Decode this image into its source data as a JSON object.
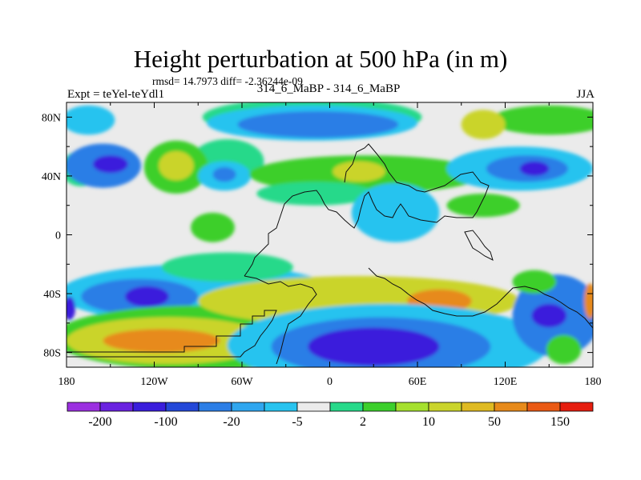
{
  "chart_data": {
    "type": "heatmap",
    "title": "Height perturbation at 500 hPa (in m)",
    "stats_text": "rmsd= 14.7973 diff= -2.36244e-09",
    "left_label": "Expt = teYel-teYdl1",
    "subtitle": "314_6_MaBP - 314_6_MaBP",
    "right_label": "JJA",
    "x_ticks": [
      "180",
      "120W",
      "60W",
      "0",
      "60E",
      "120E",
      "180"
    ],
    "x_tick_values": [
      -180,
      -120,
      -60,
      0,
      60,
      120,
      180
    ],
    "y_ticks": [
      "80N",
      "40N",
      "0",
      "40S",
      "80S"
    ],
    "y_tick_values": [
      80,
      40,
      0,
      -40,
      -80
    ],
    "xlim": [
      -180,
      180
    ],
    "ylim": [
      -90,
      90
    ],
    "colorbar": {
      "colors": [
        "#9b30e0",
        "#6a22e0",
        "#3a1edc",
        "#2448d8",
        "#2c7ee6",
        "#2fa6ef",
        "#28c3ef",
        "#ebebeb",
        "#27d98a",
        "#3ccf2c",
        "#a5e02e",
        "#cad42c",
        "#dfba22",
        "#e78a1a",
        "#ea5a14",
        "#e61e0f"
      ],
      "labels": [
        "-200",
        "-100",
        "-20",
        "-5",
        "2",
        "10",
        "50",
        "150"
      ]
    },
    "regions": [
      {
        "level": -5,
        "cx": -165,
        "cy": 78,
        "rx": 18,
        "ry": 10
      },
      {
        "level": 2,
        "cx": -170,
        "cy": 45,
        "rx": 14,
        "ry": 12
      },
      {
        "level": -20,
        "cx": -155,
        "cy": 47,
        "rx": 26,
        "ry": 15
      },
      {
        "level": -100,
        "cx": -150,
        "cy": 48,
        "rx": 12,
        "ry": 6
      },
      {
        "level": 2,
        "cx": -70,
        "cy": 50,
        "rx": 25,
        "ry": 15
      },
      {
        "level": 10,
        "cx": -105,
        "cy": 46,
        "rx": 22,
        "ry": 18
      },
      {
        "level": 50,
        "cx": -105,
        "cy": 47,
        "rx": 12,
        "ry": 10
      },
      {
        "level": 2,
        "cx": -12,
        "cy": 80,
        "rx": 75,
        "ry": 13
      },
      {
        "level": -5,
        "cx": -12,
        "cy": 76,
        "rx": 72,
        "ry": 12
      },
      {
        "level": -20,
        "cx": -8,
        "cy": 75,
        "rx": 55,
        "ry": 9
      },
      {
        "level": -5,
        "cx": -72,
        "cy": 40,
        "rx": 18,
        "ry": 10
      },
      {
        "level": -20,
        "cx": -72,
        "cy": 41,
        "rx": 8,
        "ry": 5
      },
      {
        "level": 10,
        "cx": 25,
        "cy": 41,
        "rx": 80,
        "ry": 13
      },
      {
        "level": 50,
        "cx": 20,
        "cy": 43,
        "rx": 18,
        "ry": 7
      },
      {
        "level": 2,
        "cx": -10,
        "cy": 28,
        "rx": 40,
        "ry": 8
      },
      {
        "level": 10,
        "cx": 150,
        "cy": 78,
        "rx": 40,
        "ry": 10
      },
      {
        "level": 50,
        "cx": 105,
        "cy": 75,
        "rx": 15,
        "ry": 10
      },
      {
        "level": -5,
        "cx": 130,
        "cy": 45,
        "rx": 50,
        "ry": 15
      },
      {
        "level": -20,
        "cx": 135,
        "cy": 45,
        "rx": 28,
        "ry": 9
      },
      {
        "level": -100,
        "cx": 140,
        "cy": 45,
        "rx": 10,
        "ry": 5
      },
      {
        "level": 10,
        "cx": 105,
        "cy": 20,
        "rx": 25,
        "ry": 8
      },
      {
        "level": -5,
        "cx": 45,
        "cy": 15,
        "rx": 30,
        "ry": 20
      },
      {
        "level": 10,
        "cx": -80,
        "cy": 5,
        "rx": 15,
        "ry": 10
      },
      {
        "level": -5,
        "cx": -90,
        "cy": -40,
        "rx": 95,
        "ry": 20
      },
      {
        "level": -20,
        "cx": -130,
        "cy": -42,
        "rx": 40,
        "ry": 12
      },
      {
        "level": -100,
        "cx": -125,
        "cy": -42,
        "rx": 15,
        "ry": 7
      },
      {
        "level": 2,
        "cx": -70,
        "cy": -22,
        "rx": 45,
        "ry": 10
      },
      {
        "level": 10,
        "cx": -90,
        "cy": -70,
        "rx": 100,
        "ry": 22
      },
      {
        "level": 50,
        "cx": -110,
        "cy": -72,
        "rx": 70,
        "ry": 16
      },
      {
        "level": 150,
        "cx": -115,
        "cy": -72,
        "rx": 40,
        "ry": 8
      },
      {
        "level": 50,
        "cx": 20,
        "cy": -45,
        "rx": 110,
        "ry": 17
      },
      {
        "level": 150,
        "cx": 75,
        "cy": -45,
        "rx": 22,
        "ry": 8
      },
      {
        "level": -5,
        "cx": 40,
        "cy": -75,
        "rx": 110,
        "ry": 28
      },
      {
        "level": -20,
        "cx": 35,
        "cy": -76,
        "rx": 75,
        "ry": 20
      },
      {
        "level": -100,
        "cx": 30,
        "cy": -76,
        "rx": 45,
        "ry": 13
      },
      {
        "level": -20,
        "cx": 155,
        "cy": -55,
        "rx": 30,
        "ry": 28
      },
      {
        "level": -100,
        "cx": 150,
        "cy": -55,
        "rx": 12,
        "ry": 8
      },
      {
        "level": 10,
        "cx": 140,
        "cy": -32,
        "rx": 15,
        "ry": 8
      },
      {
        "level": 10,
        "cx": 160,
        "cy": -78,
        "rx": 12,
        "ry": 10
      },
      {
        "level": -100,
        "cx": -178,
        "cy": -50,
        "rx": 4,
        "ry": 8
      },
      {
        "level": 150,
        "cx": 178,
        "cy": -45,
        "rx": 4,
        "ry": 12
      }
    ]
  }
}
